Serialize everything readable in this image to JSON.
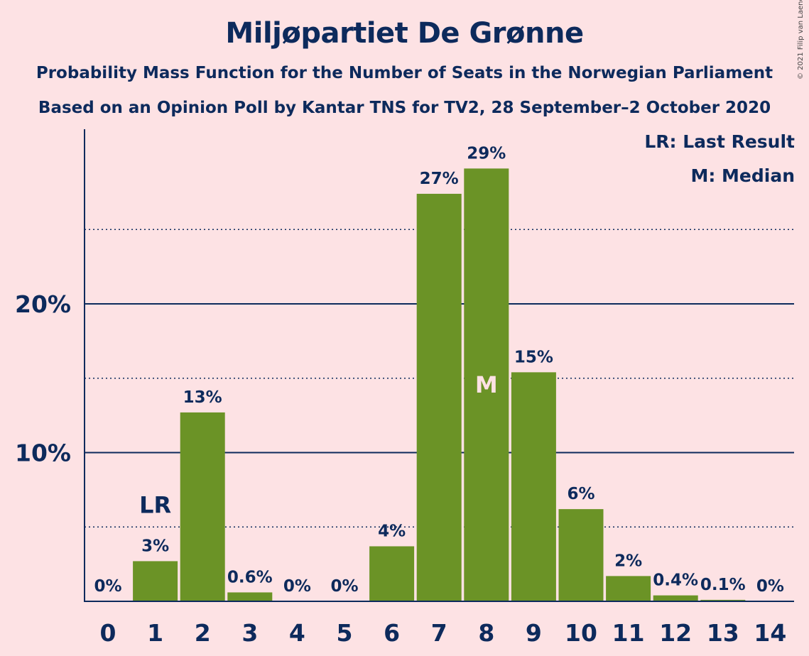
{
  "title": "Miljøpartiet De Grønne",
  "subtitle1": "Probability Mass Function for the Number of Seats in the Norwegian Parliament",
  "subtitle2": "Based on an Opinion Poll by Kantar TNS for TV2, 28 September–2 October 2020",
  "copyright": "© 2021 Filip van Laenen",
  "legend": {
    "last_result": "LR: Last Result",
    "median": "M: Median"
  },
  "colors": {
    "background": "#FDE2E4",
    "bar": "#6B9326",
    "text": "#0D2A5C",
    "median_marker": "#FDE2E4"
  },
  "chart_data": {
    "type": "bar",
    "categories": [
      "0",
      "1",
      "2",
      "3",
      "4",
      "5",
      "6",
      "7",
      "8",
      "9",
      "10",
      "11",
      "12",
      "13",
      "14"
    ],
    "values": [
      0,
      2.7,
      12.7,
      0.6,
      0,
      0,
      3.7,
      27.4,
      29.1,
      15.4,
      6.2,
      1.7,
      0.4,
      0.1,
      0
    ],
    "labels": [
      "0%",
      "3%",
      "13%",
      "0.6%",
      "0%",
      "0%",
      "4%",
      "27%",
      "29%",
      "15%",
      "6%",
      "2%",
      "0.4%",
      "0.1%",
      "0%"
    ],
    "ylim": [
      0,
      31.7
    ],
    "y_major_ticks": [
      10,
      20
    ],
    "y_major_tick_labels": [
      "10%",
      "20%"
    ],
    "y_minor_gridlines": [
      5,
      15,
      25
    ],
    "last_result": {
      "category": "1",
      "label": "LR"
    },
    "median": {
      "category": "8",
      "label": "M"
    },
    "xlabel": "",
    "ylabel": ""
  }
}
